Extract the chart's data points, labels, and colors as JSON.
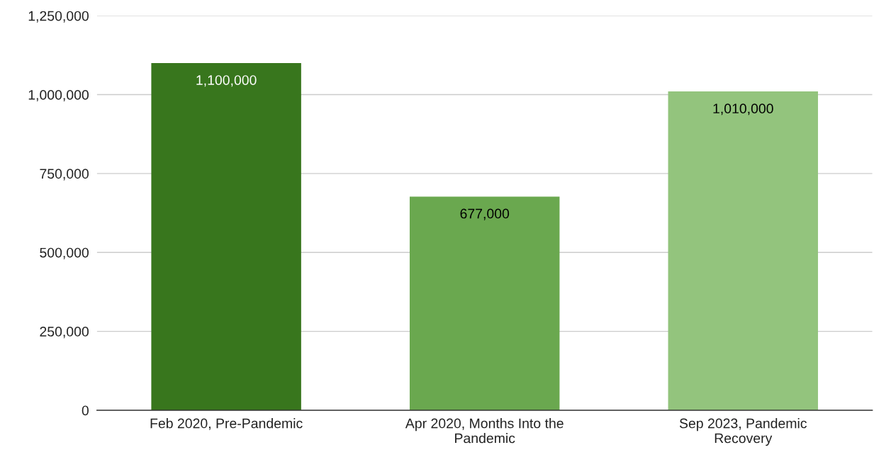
{
  "chart_data": {
    "type": "bar",
    "categories": [
      "Feb 2020, Pre-Pandemic",
      "Apr 2020, Months Into the Pandemic",
      "Sep 2023, Pandemic Recovery"
    ],
    "values": [
      1100000,
      677000,
      1010000
    ],
    "colors": [
      "#38761d",
      "#6aa84f",
      "#93c47d"
    ],
    "value_labels": [
      "1,100,000",
      "677,000",
      "1,010,000"
    ],
    "ylim": [
      0,
      1250000
    ],
    "yticks": [
      {
        "value": 0,
        "label": "0"
      },
      {
        "value": 250000,
        "label": "250,000"
      },
      {
        "value": 500000,
        "label": "500,000"
      },
      {
        "value": 750000,
        "label": "750,000"
      },
      {
        "value": 1000000,
        "label": "1,000,000"
      },
      {
        "value": 1250000,
        "label": "1,250,000"
      }
    ],
    "grid": "y",
    "legend": false
  }
}
